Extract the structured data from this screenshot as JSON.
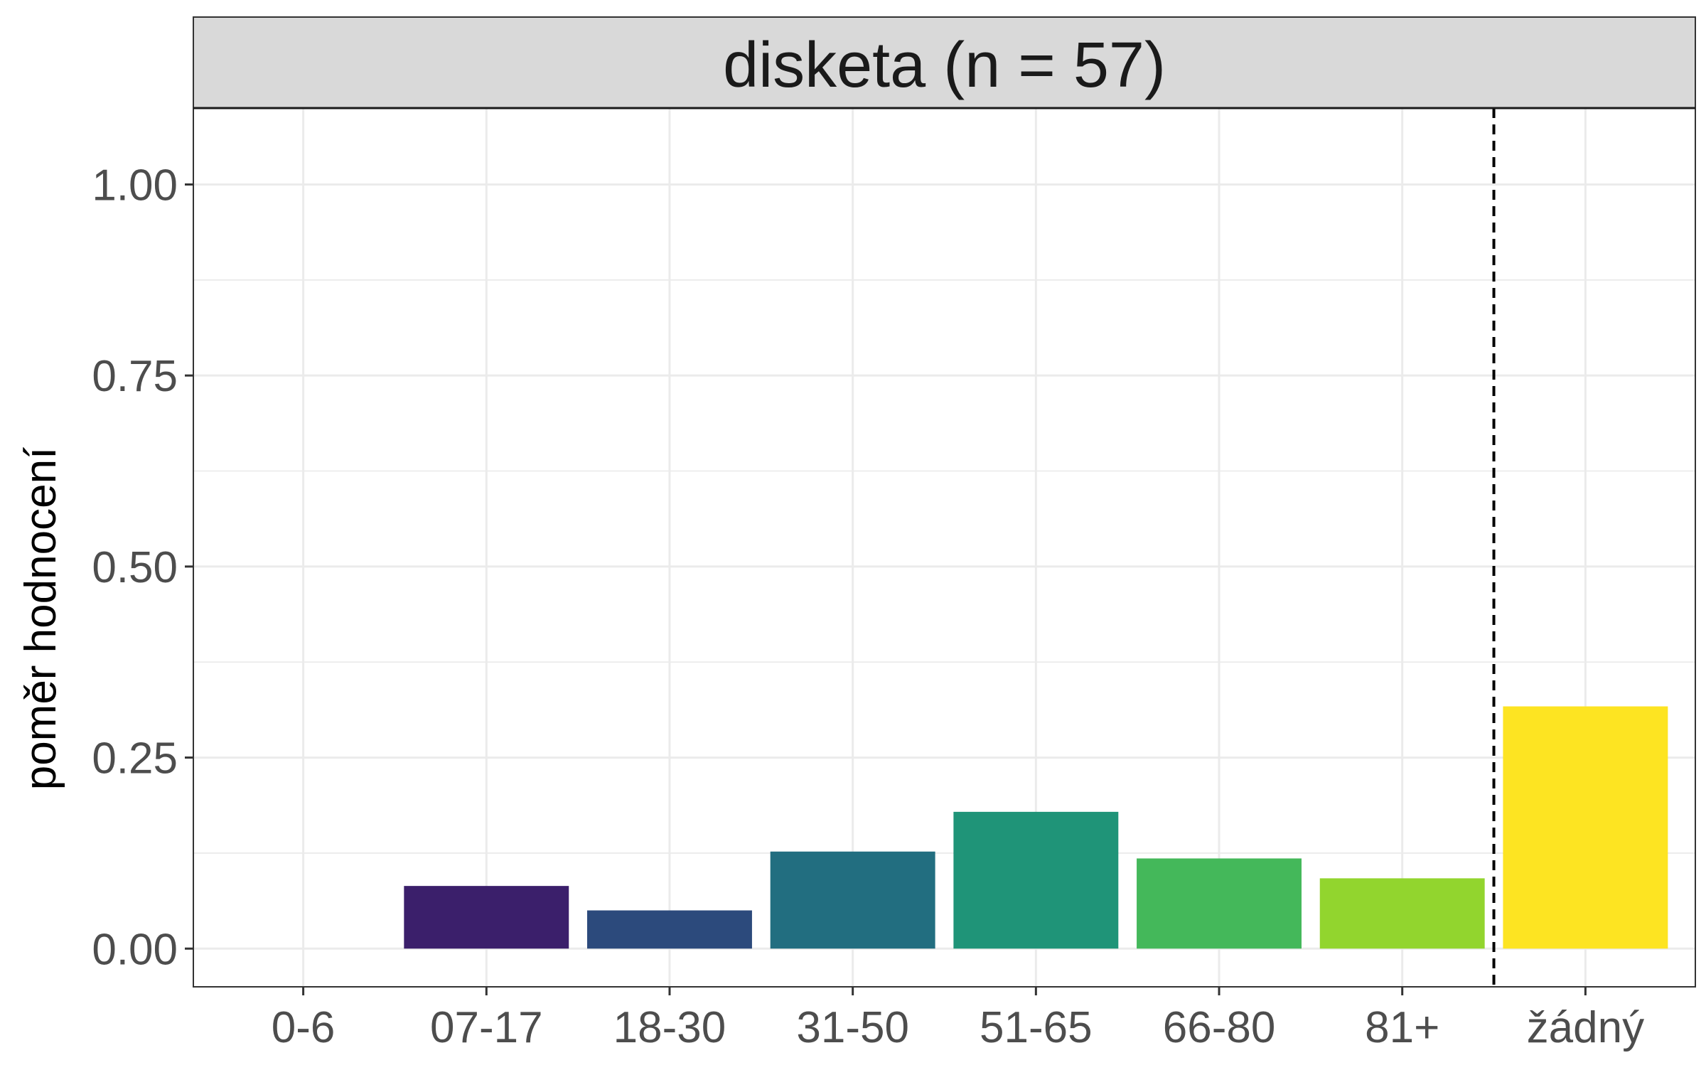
{
  "chart_data": {
    "type": "bar",
    "facet_title": "disketa (n = 57)",
    "ylabel": "poměr hodnocení",
    "xlabel": "",
    "categories": [
      "0-6",
      "07-17",
      "18-30",
      "31-50",
      "51-65",
      "66-80",
      "81+",
      "žádný"
    ],
    "values": [
      0.0,
      0.082,
      0.05,
      0.127,
      0.179,
      0.118,
      0.092,
      0.317
    ],
    "colors": [
      "#440154",
      "#3B1F6B",
      "#2C4A7C",
      "#226E80",
      "#1F9478",
      "#44B85A",
      "#92D52E",
      "#FDE422"
    ],
    "ylim": [
      -0.05,
      1.1
    ],
    "yticks": [
      0.0,
      0.25,
      0.5,
      0.75,
      1.0
    ],
    "ytick_labels": [
      "0.00",
      "0.25",
      "0.50",
      "0.75",
      "1.00"
    ],
    "reference_line": {
      "between": [
        "81+",
        "žádný"
      ],
      "style": "dashed"
    },
    "grid": true,
    "legend": "none"
  }
}
